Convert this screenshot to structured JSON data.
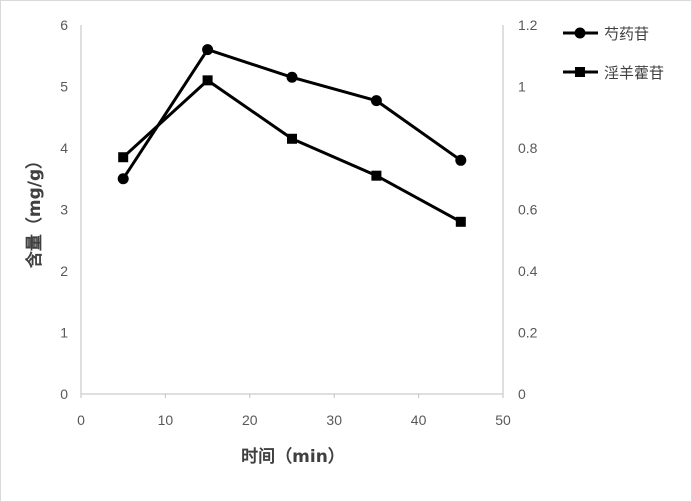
{
  "chart_data": {
    "type": "line",
    "title": "",
    "xlabel": "时间（min）",
    "ylabel": "含量（mg/g）",
    "y2label": "",
    "xlim": [
      0,
      50
    ],
    "ylim": [
      0,
      6
    ],
    "y2lim": [
      0,
      1.2
    ],
    "x_ticks": [
      "0",
      "10",
      "20",
      "30",
      "40",
      "50"
    ],
    "y_ticks": [
      "0",
      "1",
      "2",
      "3",
      "4",
      "5",
      "6"
    ],
    "y2_ticks": [
      "0",
      "0.2",
      "0.4",
      "0.6",
      "0.8",
      "1",
      "1.2"
    ],
    "grid": false,
    "legend_position": "top-right",
    "series": [
      {
        "name": "芍药苷",
        "axis": "left",
        "marker": "circle",
        "color": "#000000",
        "x": [
          5,
          15,
          25,
          35,
          45
        ],
        "y": [
          3.5,
          5.6,
          5.15,
          4.77,
          3.8
        ]
      },
      {
        "name": "淫羊藿苷",
        "axis": "right",
        "marker": "square",
        "color": "#000000",
        "x": [
          5,
          15,
          25,
          35,
          45
        ],
        "y": [
          0.77,
          1.02,
          0.83,
          0.71,
          0.56
        ]
      }
    ]
  }
}
